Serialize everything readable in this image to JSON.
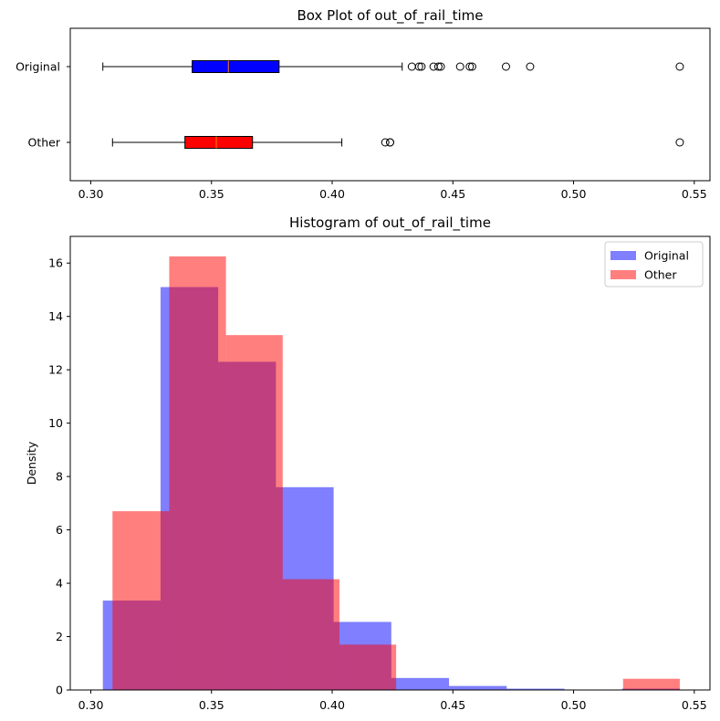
{
  "chart_data": [
    {
      "type": "box",
      "title": "Box Plot of out_of_rail_time",
      "xlim": [
        0.2915,
        0.5565
      ],
      "xticks": [
        0.3,
        0.35,
        0.4,
        0.45,
        0.5,
        0.55
      ],
      "xtick_labels": [
        "0.30",
        "0.35",
        "0.40",
        "0.45",
        "0.50",
        "0.55"
      ],
      "series": [
        {
          "name": "Original",
          "color": "#0000ff",
          "whisker_low": 0.305,
          "q1": 0.342,
          "median": 0.357,
          "q3": 0.378,
          "whisker_high": 0.429,
          "outliers": [
            0.433,
            0.436,
            0.437,
            0.442,
            0.444,
            0.445,
            0.453,
            0.457,
            0.458,
            0.472,
            0.482,
            0.544
          ]
        },
        {
          "name": "Other",
          "color": "#ff0000",
          "whisker_low": 0.309,
          "q1": 0.339,
          "median": 0.352,
          "q3": 0.367,
          "whisker_high": 0.404,
          "outliers": [
            0.422,
            0.424,
            0.424,
            0.544
          ]
        }
      ]
    },
    {
      "type": "histogram",
      "title": "Histogram of out_of_rail_time",
      "ylabel": "Density",
      "xlim": [
        0.2915,
        0.5565
      ],
      "ylim": [
        0,
        17
      ],
      "xticks": [
        0.3,
        0.35,
        0.4,
        0.45,
        0.5,
        0.55
      ],
      "xtick_labels": [
        "0.30",
        "0.35",
        "0.40",
        "0.45",
        "0.50",
        "0.55"
      ],
      "yticks": [
        0,
        2,
        4,
        6,
        8,
        10,
        12,
        14,
        16
      ],
      "ytick_labels": [
        "0",
        "2",
        "4",
        "6",
        "8",
        "10",
        "12",
        "14",
        "16"
      ],
      "legend_position": "top-right",
      "series": [
        {
          "name": "Original",
          "color": "#0000ff",
          "opacity": 0.5,
          "bins": [
            0.305,
            0.3289,
            0.3528,
            0.3767,
            0.4006,
            0.4245,
            0.4484,
            0.4723,
            0.4962,
            0.5201,
            0.544
          ],
          "values": [
            3.35,
            15.1,
            12.3,
            7.6,
            2.55,
            0.45,
            0.15,
            0.05,
            0.0,
            0.05
          ]
        },
        {
          "name": "Other",
          "color": "#ff0000",
          "opacity": 0.5,
          "bins": [
            0.309,
            0.3325,
            0.356,
            0.3795,
            0.403,
            0.4265,
            0.45,
            0.4735,
            0.497,
            0.5205,
            0.544
          ],
          "values": [
            6.7,
            16.25,
            13.3,
            4.15,
            1.7,
            0.0,
            0.0,
            0.0,
            0.0,
            0.42
          ]
        }
      ]
    }
  ]
}
